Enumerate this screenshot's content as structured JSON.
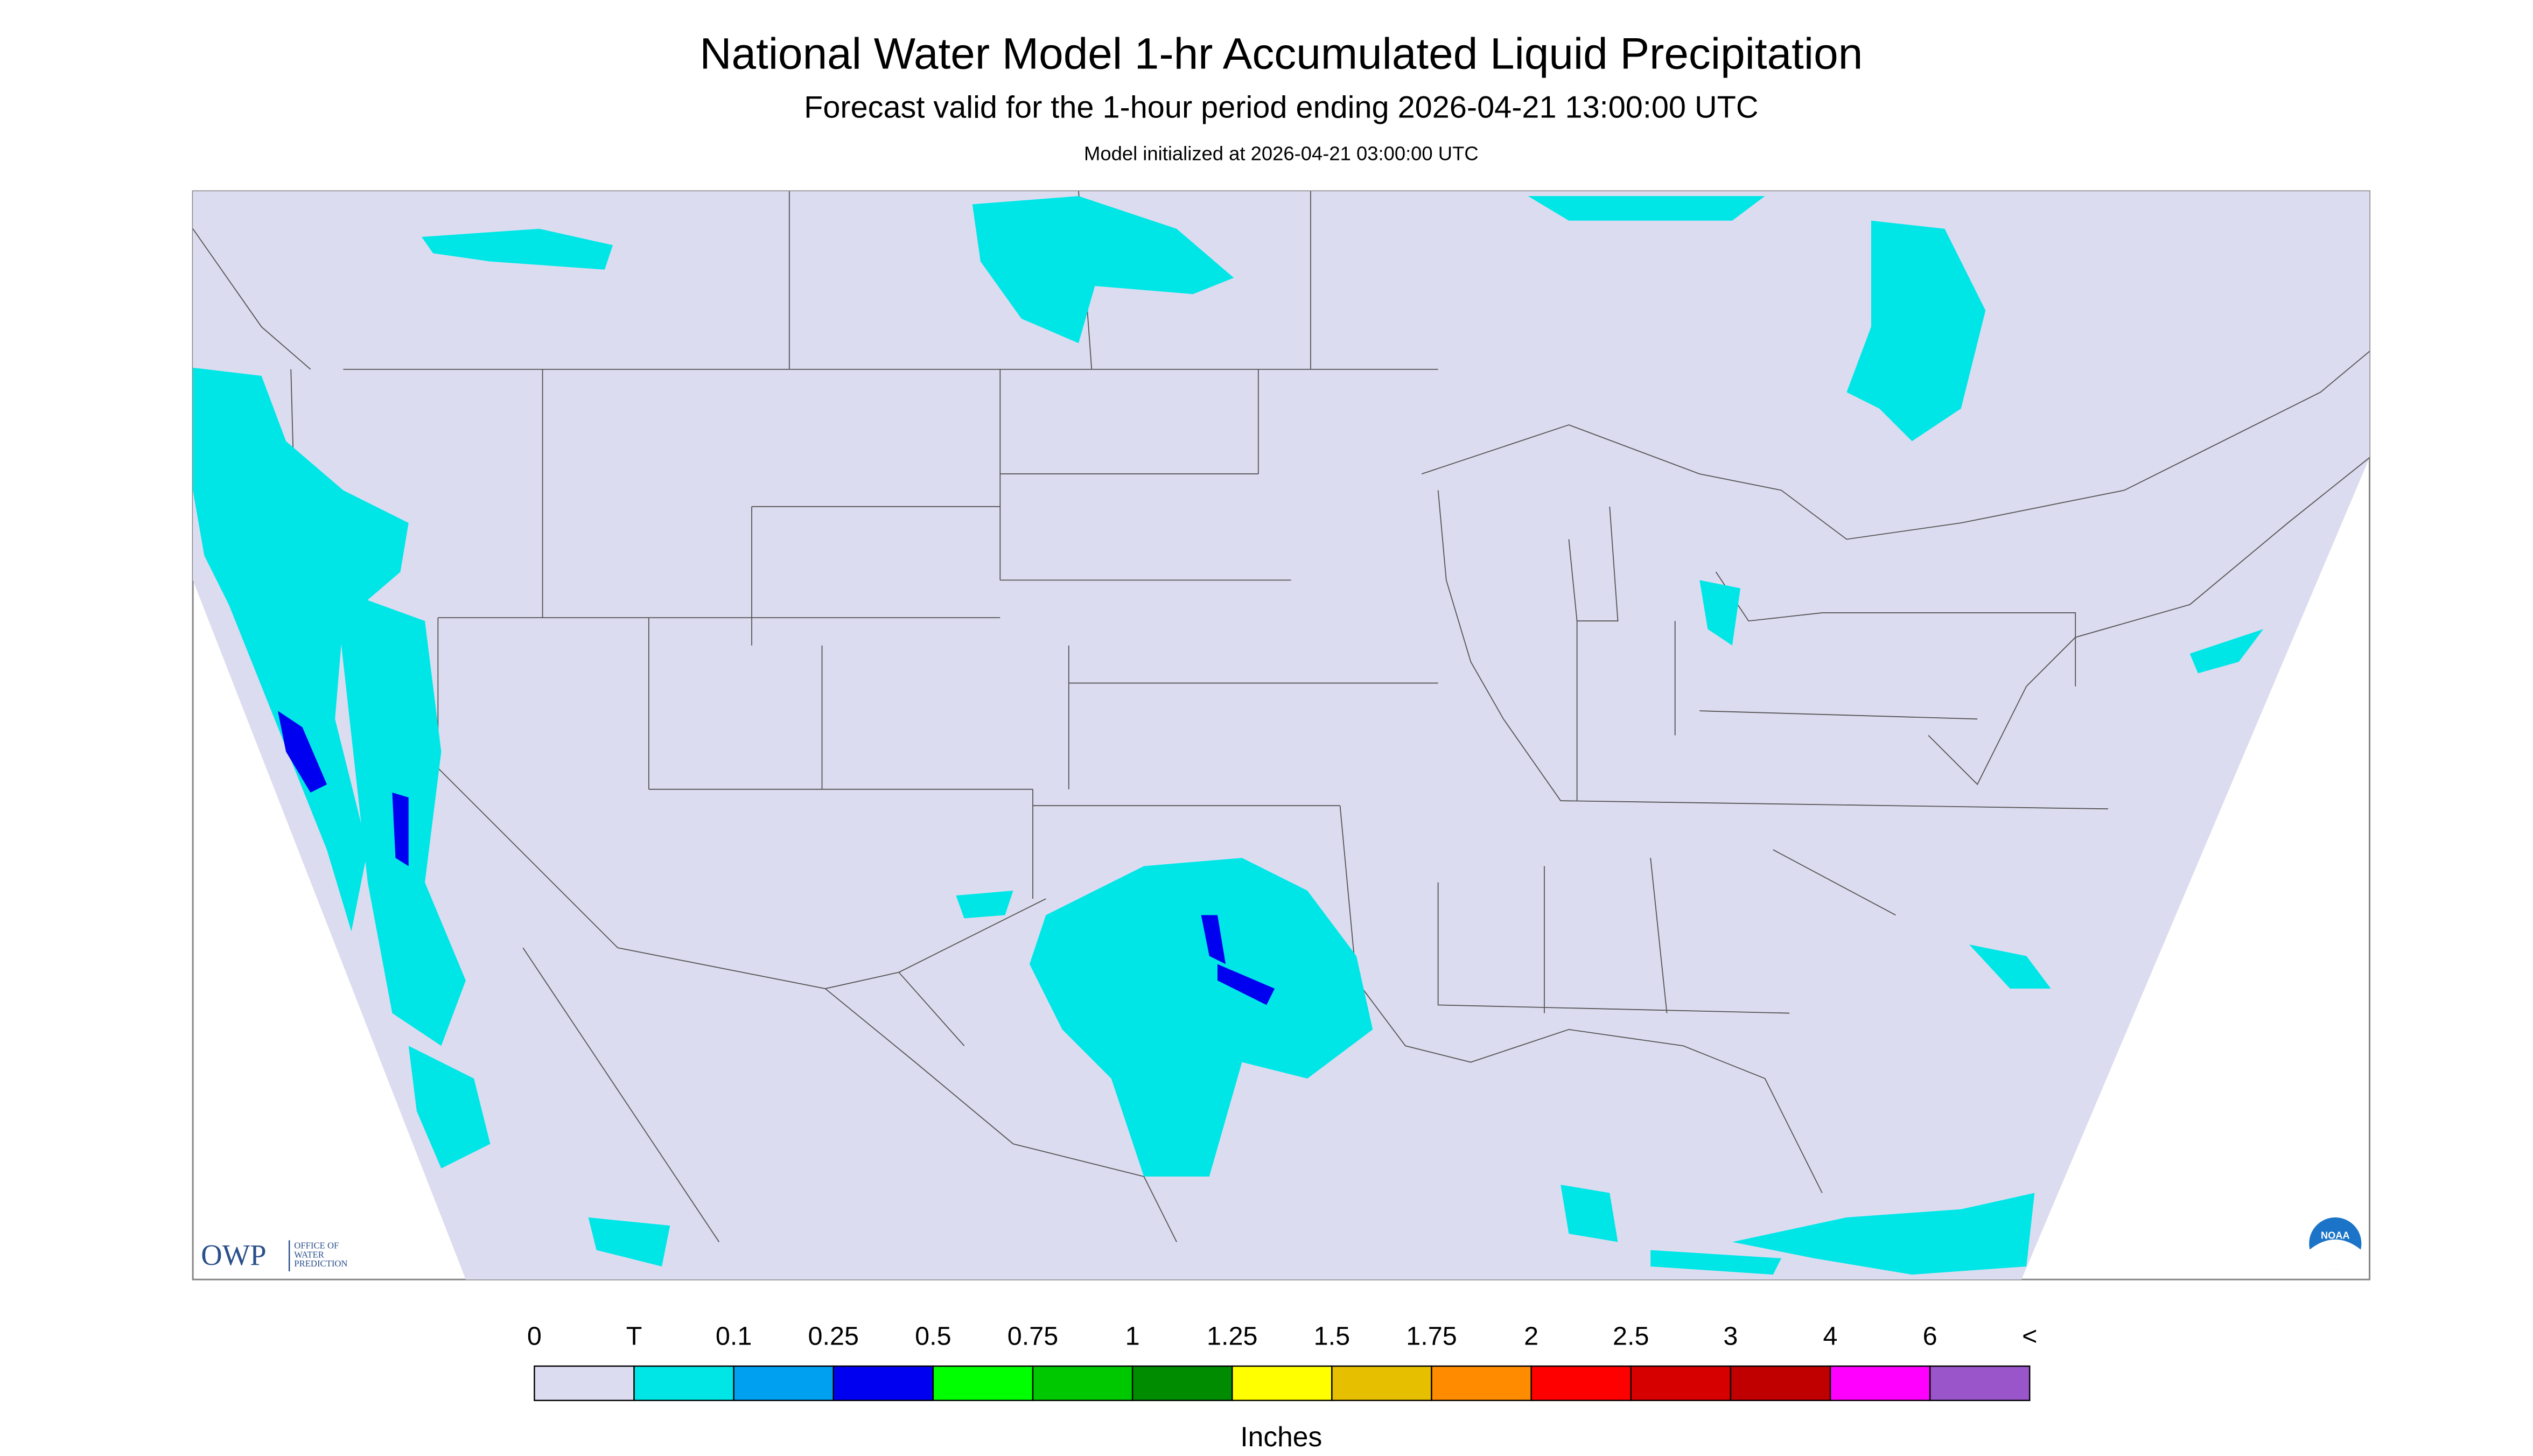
{
  "header": {
    "title": "National Water Model 1-hr Accumulated Liquid Precipitation",
    "subtitle": "Forecast valid for the 1-hour period ending 2026-04-21 13:00:00 UTC",
    "initialized": "Model initialized at 2026-04-21 03:00:00 UTC"
  },
  "legend": {
    "labels": [
      "0",
      "T",
      "0.1",
      "0.25",
      "0.5",
      "0.75",
      "1",
      "1.25",
      "1.5",
      "1.75",
      "2",
      "2.5",
      "3",
      "4",
      "6",
      "<"
    ],
    "colors": [
      "#dcdcf0",
      "#00e6e6",
      "#00a0f0",
      "#0000f0",
      "#00ff00",
      "#00c800",
      "#008c00",
      "#ffff00",
      "#e6c000",
      "#ff8c00",
      "#ff0000",
      "#d60000",
      "#c00000",
      "#ff00ff",
      "#9955c9"
    ],
    "unit": "Inches"
  },
  "logos": {
    "owp": "OWP",
    "owp_text": [
      "OFFICE OF",
      "WATER",
      "PREDICTION"
    ],
    "noaa": "NOAA"
  }
}
